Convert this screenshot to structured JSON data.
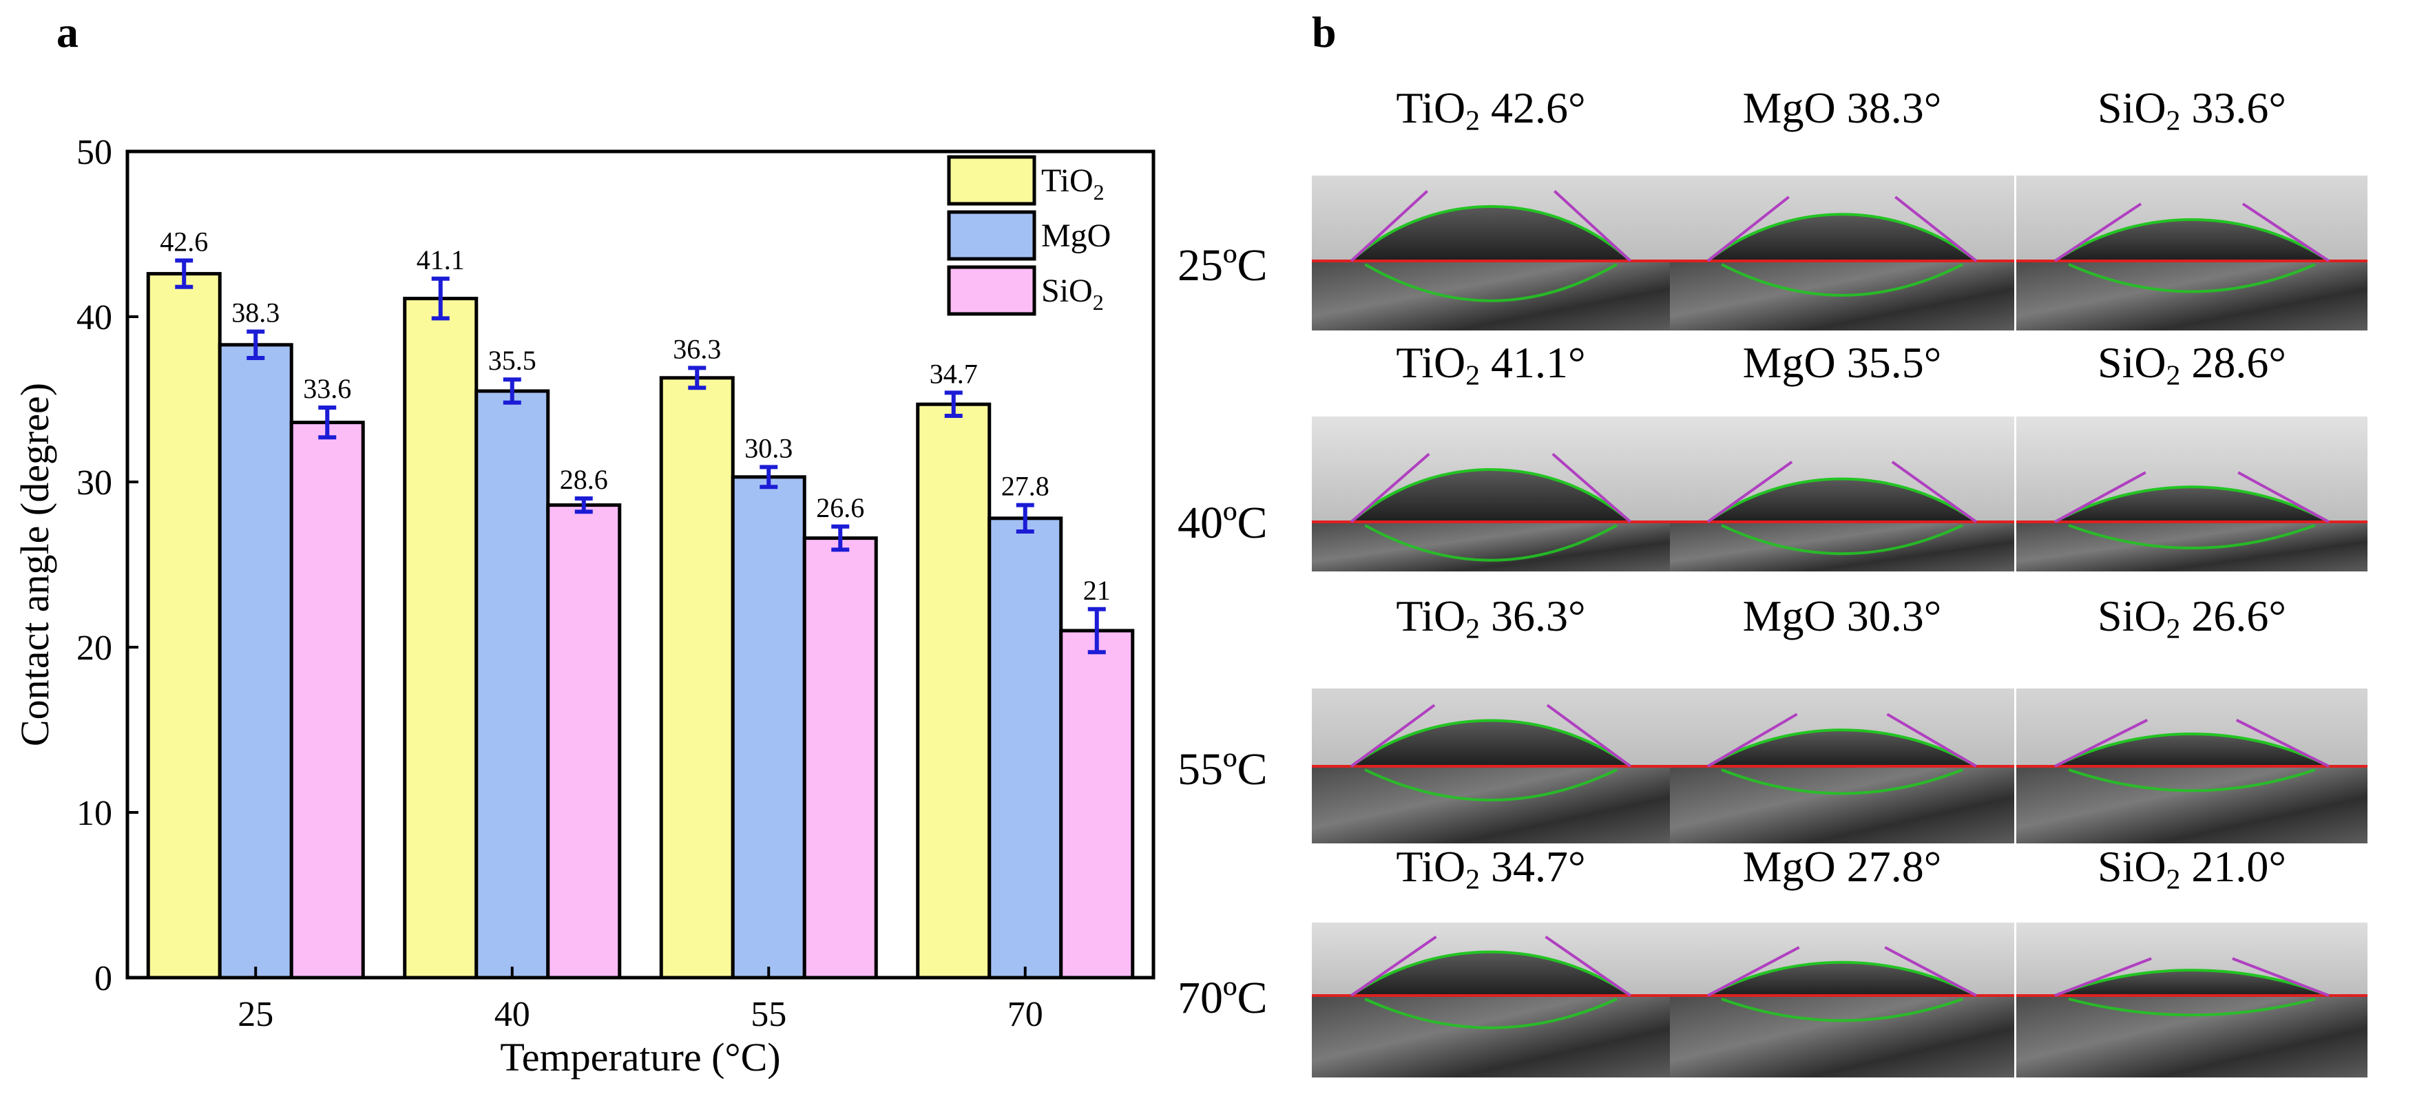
{
  "panel_a_label": "a",
  "panel_b_label": "b",
  "colors": {
    "tio2": "#fbfa9b",
    "mgo": "#a3c0f5",
    "sio2": "#fcbcf6",
    "error_bar": "#1c1cd6",
    "droplet_fit": "#22c422",
    "baseline": "#e02020",
    "tangent": "#b040c0"
  },
  "chart_data": {
    "type": "bar",
    "title": "",
    "xlabel": "Temperature (°C)",
    "ylabel": "Contact angle (degree)",
    "ylim": [
      0,
      50
    ],
    "yticks": [
      0,
      10,
      20,
      30,
      40,
      50
    ],
    "categories": [
      "25",
      "40",
      "55",
      "70"
    ],
    "legend_position": "top-right",
    "series": [
      {
        "name": "TiO",
        "sub": "2",
        "color": "#fbfa9b",
        "values": [
          42.6,
          41.1,
          36.3,
          34.7
        ],
        "labels": [
          "42.6",
          "41.1",
          "36.3",
          "34.7"
        ],
        "errors": [
          0.8,
          1.2,
          0.6,
          0.7
        ]
      },
      {
        "name": "MgO",
        "sub": "",
        "color": "#a3c0f5",
        "values": [
          38.3,
          35.5,
          30.3,
          27.8
        ],
        "labels": [
          "38.3",
          "35.5",
          "30.3",
          "27.8"
        ],
        "errors": [
          0.8,
          0.7,
          0.6,
          0.8
        ]
      },
      {
        "name": "SiO",
        "sub": "2",
        "color": "#fcbcf6",
        "values": [
          33.6,
          28.6,
          26.6,
          21.0
        ],
        "labels": [
          "33.6",
          "28.6",
          "26.6",
          "21"
        ],
        "errors": [
          0.9,
          0.4,
          0.7,
          1.3
        ]
      }
    ]
  },
  "panel_b": {
    "rows": [
      {
        "temp": "25ºC",
        "cells": [
          {
            "material": "TiO",
            "sub": "2",
            "angle": "42.6°",
            "deg": 42.6
          },
          {
            "material": "MgO",
            "sub": "",
            "angle": "38.3°",
            "deg": 38.3
          },
          {
            "material": "SiO",
            "sub": "2",
            "angle": "33.6°",
            "deg": 33.6
          }
        ]
      },
      {
        "temp": "40ºC",
        "cells": [
          {
            "material": "TiO",
            "sub": "2",
            "angle": "41.1°",
            "deg": 41.1
          },
          {
            "material": "MgO",
            "sub": "",
            "angle": "35.5°",
            "deg": 35.5
          },
          {
            "material": "SiO",
            "sub": "2",
            "angle": "28.6°",
            "deg": 28.6
          }
        ]
      },
      {
        "temp": "55ºC",
        "cells": [
          {
            "material": "TiO",
            "sub": "2",
            "angle": "36.3°",
            "deg": 36.3
          },
          {
            "material": "MgO",
            "sub": "",
            "angle": "30.3°",
            "deg": 30.3
          },
          {
            "material": "SiO",
            "sub": "2",
            "angle": "26.6°",
            "deg": 26.6
          }
        ]
      },
      {
        "temp": "70ºC",
        "cells": [
          {
            "material": "TiO",
            "sub": "2",
            "angle": "34.7°",
            "deg": 34.7
          },
          {
            "material": "MgO",
            "sub": "",
            "angle": "27.8°",
            "deg": 27.8
          },
          {
            "material": "SiO",
            "sub": "2",
            "angle": "21.0°",
            "deg": 21.0
          }
        ]
      }
    ]
  }
}
